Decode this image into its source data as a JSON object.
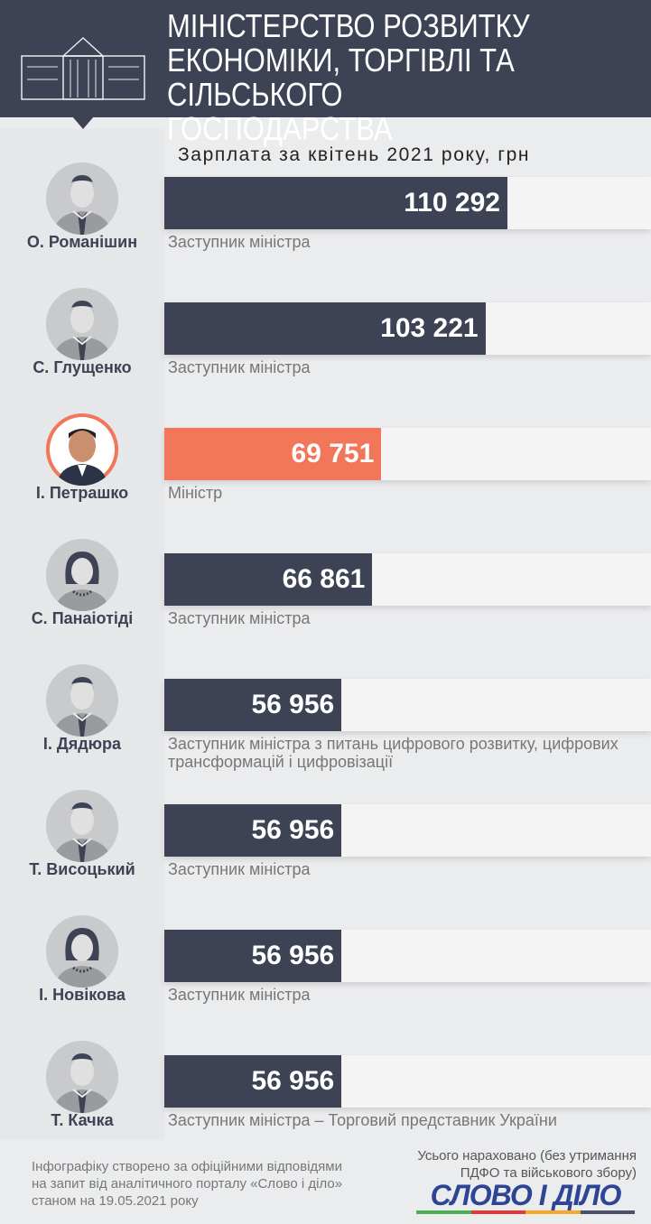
{
  "header": {
    "title": "Міністерство розвитку економіки, торгівлі та сільського господарства"
  },
  "chart_data": {
    "type": "bar",
    "title": "Зарплата за квітень 2021 року, грн",
    "categories": [
      "О. Романішин",
      "С. Глущенко",
      "І. Петрашко",
      "С. Панаіотіді",
      "І. Дядюра",
      "Т. Висоцький",
      "І. Новікова",
      "Т. Качка"
    ],
    "values": [
      110292,
      103221,
      69751,
      66861,
      56956,
      56956,
      56956,
      56956
    ],
    "value_labels": [
      "110 292",
      "103 221",
      "69 751",
      "66 861",
      "56 956",
      "56 956",
      "56 956",
      "56 956"
    ],
    "roles": [
      "Заступник міністра",
      "Заступник міністра",
      "Міністр",
      "Заступник міністра",
      "Заступник міністра з питань цифрового розвитку, цифрових трансформацій і цифровізації",
      "Заступник міністра",
      "Заступник міністра",
      "Заступник міністра – Торговий представник України"
    ],
    "avatar_types": [
      "male",
      "male",
      "photo",
      "female",
      "male",
      "male",
      "female",
      "male"
    ],
    "colors": {
      "default": "#3d4354",
      "highlight": "#f2775a"
    },
    "highlight_index": 2
  },
  "footer": {
    "note": "Інфографіку створено за офіційними відповідями на запит від аналітичного порталу «Слово і діло» станом на 19.05.2021 року",
    "total_note": "Усього нараховано (без утримання ПДФО та військового збору)",
    "logo": "СЛОВО І ДІЛО",
    "logo_colors": [
      "#4caf50",
      "#e53935",
      "#f9a825",
      "#4a5068"
    ]
  }
}
